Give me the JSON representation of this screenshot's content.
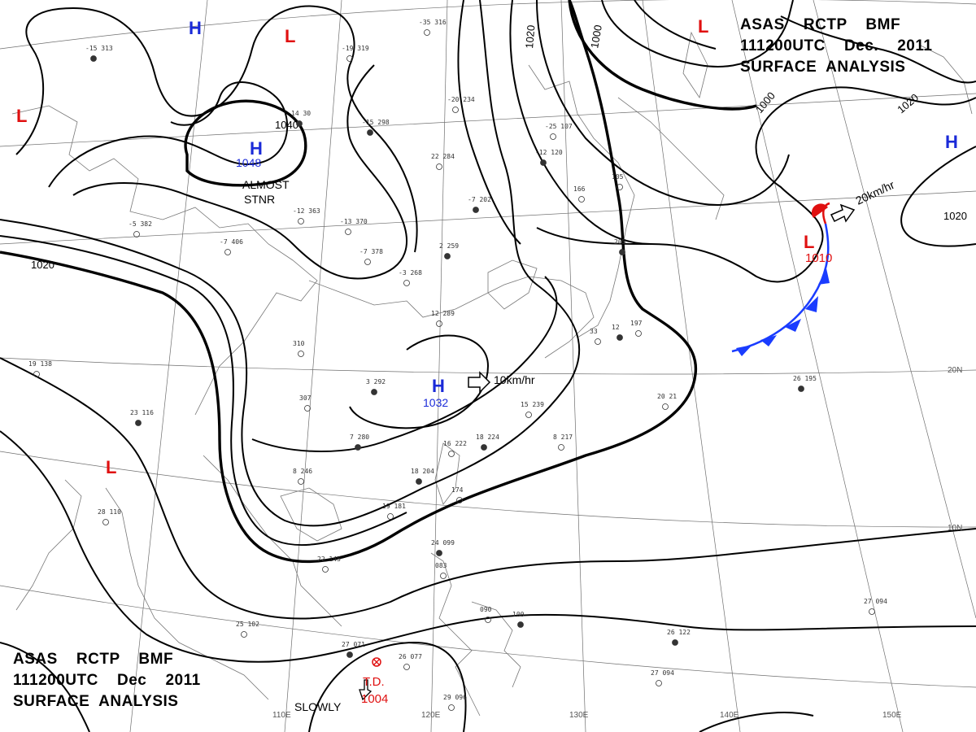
{
  "title": {
    "top_right": [
      "ASAS    RCTP    BMF",
      "111200UTC    Dec.    2011",
      "SURFACE  ANALYSIS"
    ],
    "bottom_left": [
      "ASAS    RCTP    BMF",
      "111200UTC    Dec    2011",
      "SURFACE  ANALYSIS"
    ]
  },
  "isobar_labels": [
    "1020",
    "1000",
    "1040",
    "1020",
    "1000",
    "1020",
    "1020"
  ],
  "pressure_centers": [
    {
      "type": "H",
      "pressure": "1048"
    },
    {
      "type": "H",
      "pressure": "1032"
    },
    {
      "type": "H",
      "pressure": ""
    },
    {
      "type": "H",
      "pressure": ""
    },
    {
      "type": "L",
      "pressure": ""
    },
    {
      "type": "L",
      "pressure": ""
    },
    {
      "type": "L",
      "pressure": ""
    },
    {
      "type": "L",
      "pressure": ""
    },
    {
      "type": "L",
      "pressure": "1010"
    }
  ],
  "annotations": {
    "almost_stnr": "ALMOST STNR",
    "h_motion": "10km/hr",
    "l_motion": "20km/hr",
    "slowly": "SLOWLY",
    "td_label": "T.D.",
    "td_pressure": "1004"
  },
  "grid_labels": [
    "110E",
    "120E",
    "130E",
    "140E",
    "150E",
    "20N",
    "10N"
  ],
  "station_samples": [
    "-15 313",
    "-35 316",
    "-19 319",
    "14 30",
    "-12 363",
    "-13 370",
    "-15 298",
    "-20 234",
    "22 284",
    "-7 202",
    "-7 406",
    "-7 378",
    "2 259",
    "-3 268",
    "12 289",
    "3 292",
    "307",
    "310",
    "7 280",
    "8 246",
    "16 222",
    "18 224",
    "15 239",
    "8 217",
    "18 204",
    "174",
    "19 181",
    "24 099",
    "083",
    "090",
    "100",
    "22 145",
    "25 102",
    "27 071",
    "26 077",
    "29 096",
    "26 122",
    "27 094",
    "27 094",
    "26 195",
    "20 21",
    "19 138",
    "23 116",
    "28 110",
    "-25 107",
    "-12 120",
    "166",
    "105",
    "205",
    "197",
    "33",
    "12",
    "-5 382"
  ],
  "colors": {
    "high": "#1a2ad8",
    "low": "#e01010",
    "isobar": "#000000",
    "cold_front": "#1a3cff",
    "warm_front": "#e01010"
  }
}
